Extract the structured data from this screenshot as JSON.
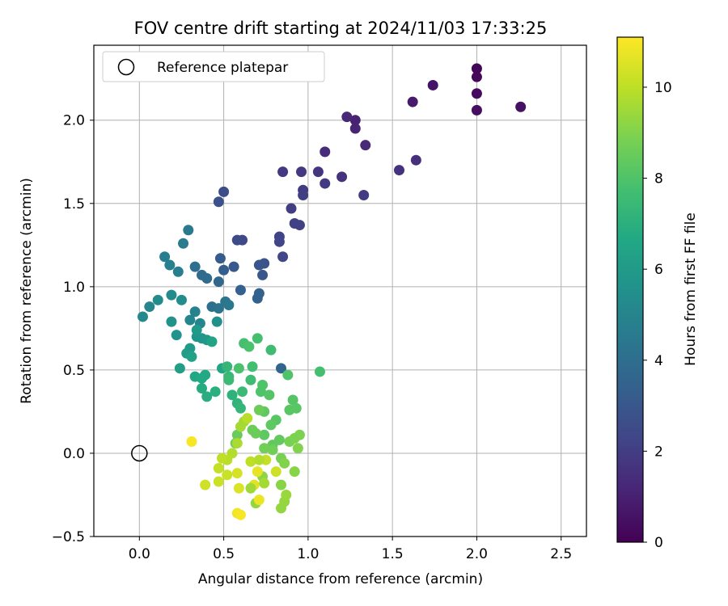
{
  "chart_data": {
    "type": "scatter",
    "title": "FOV centre drift starting at 2024/11/03 17:33:25",
    "xlabel": "Angular distance from reference (arcmin)",
    "ylabel": "Rotation from reference (arcmin)",
    "xlim": [
      -0.27,
      2.65
    ],
    "ylim": [
      -0.5,
      2.45
    ],
    "x_ticks": [
      0.0,
      0.5,
      1.0,
      1.5,
      2.0,
      2.5
    ],
    "x_tick_labels": [
      "0.0",
      "0.5",
      "1.0",
      "1.5",
      "2.0",
      "2.5"
    ],
    "y_ticks": [
      -0.5,
      0.0,
      0.5,
      1.0,
      1.5,
      2.0
    ],
    "y_tick_labels": [
      "−0.5",
      "0.0",
      "0.5",
      "1.0",
      "1.5",
      "2.0"
    ],
    "grid": true,
    "legend": {
      "position": "top-left",
      "entries": [
        {
          "label": "Reference platepar",
          "marker": "hollow-circle"
        }
      ]
    },
    "reference_point": [
      0.0,
      0.0
    ],
    "colorbar": {
      "label": "Hours from first FF file",
      "range": [
        0,
        11.1
      ],
      "ticks": [
        0,
        2,
        4,
        6,
        8,
        10
      ],
      "tick_labels": [
        "0",
        "2",
        "4",
        "6",
        "8",
        "10"
      ],
      "colormap": "viridis"
    },
    "points": [
      [
        2.0,
        2.31,
        0.1
      ],
      [
        2.0,
        2.26,
        0.2
      ],
      [
        2.0,
        2.16,
        0.3
      ],
      [
        2.0,
        2.06,
        0.4
      ],
      [
        2.26,
        2.08,
        0.5
      ],
      [
        1.74,
        2.21,
        0.6
      ],
      [
        1.62,
        2.11,
        0.8
      ],
      [
        1.28,
        2.0,
        1.0
      ],
      [
        1.28,
        1.95,
        1.1
      ],
      [
        1.23,
        2.02,
        1.2
      ],
      [
        1.34,
        1.85,
        1.3
      ],
      [
        1.1,
        1.81,
        1.4
      ],
      [
        1.64,
        1.76,
        1.5
      ],
      [
        1.54,
        1.7,
        1.6
      ],
      [
        1.2,
        1.66,
        1.6
      ],
      [
        1.06,
        1.69,
        1.7
      ],
      [
        0.96,
        1.69,
        1.8
      ],
      [
        0.85,
        1.69,
        1.8
      ],
      [
        1.1,
        1.62,
        1.9
      ],
      [
        1.33,
        1.55,
        1.9
      ],
      [
        0.97,
        1.58,
        1.9
      ],
      [
        0.97,
        1.55,
        2.0
      ],
      [
        0.9,
        1.47,
        2.0
      ],
      [
        0.92,
        1.38,
        2.1
      ],
      [
        0.95,
        1.37,
        2.1
      ],
      [
        0.83,
        1.3,
        2.2
      ],
      [
        0.83,
        1.27,
        2.3
      ],
      [
        0.85,
        1.18,
        2.3
      ],
      [
        0.61,
        1.28,
        2.4
      ],
      [
        0.58,
        1.28,
        2.5
      ],
      [
        0.5,
        1.57,
        2.6
      ],
      [
        0.47,
        1.51,
        2.7
      ],
      [
        0.74,
        1.14,
        2.8
      ],
      [
        0.71,
        1.13,
        2.9
      ],
      [
        0.73,
        1.07,
        3.0
      ],
      [
        0.56,
        1.12,
        3.1
      ],
      [
        0.48,
        1.17,
        3.2
      ],
      [
        0.5,
        1.1,
        3.3
      ],
      [
        0.6,
        0.98,
        3.4
      ],
      [
        0.71,
        0.96,
        3.5
      ],
      [
        0.7,
        0.93,
        3.5
      ],
      [
        0.84,
        0.51,
        3.6
      ],
      [
        0.47,
        1.03,
        3.7
      ],
      [
        0.37,
        1.07,
        3.8
      ],
      [
        0.4,
        1.05,
        3.9
      ],
      [
        0.33,
        1.12,
        4.0
      ],
      [
        0.43,
        0.88,
        4.1
      ],
      [
        0.47,
        0.87,
        4.2
      ],
      [
        0.51,
        0.91,
        4.3
      ],
      [
        0.53,
        0.89,
        4.4
      ],
      [
        0.29,
        1.34,
        4.5
      ],
      [
        0.26,
        1.26,
        4.6
      ],
      [
        0.15,
        1.18,
        4.7
      ],
      [
        0.23,
        1.09,
        4.7
      ],
      [
        0.18,
        1.13,
        4.8
      ],
      [
        0.33,
        0.85,
        4.9
      ],
      [
        0.36,
        0.78,
        5.0
      ],
      [
        0.3,
        0.8,
        5.0
      ],
      [
        0.06,
        0.88,
        5.1
      ],
      [
        0.02,
        0.82,
        5.2
      ],
      [
        0.11,
        0.92,
        5.3
      ],
      [
        0.19,
        0.95,
        5.3
      ],
      [
        0.25,
        0.92,
        5.4
      ],
      [
        0.46,
        0.79,
        5.5
      ],
      [
        0.19,
        0.79,
        5.6
      ],
      [
        0.22,
        0.71,
        5.6
      ],
      [
        0.34,
        0.7,
        5.7
      ],
      [
        0.37,
        0.69,
        5.8
      ],
      [
        0.4,
        0.68,
        5.9
      ],
      [
        0.34,
        0.74,
        6.0
      ],
      [
        0.3,
        0.63,
        6.0
      ],
      [
        0.28,
        0.6,
        6.1
      ],
      [
        0.24,
        0.51,
        6.2
      ],
      [
        0.31,
        0.58,
        6.3
      ],
      [
        0.43,
        0.67,
        6.4
      ],
      [
        0.49,
        0.51,
        6.5
      ],
      [
        0.33,
        0.46,
        6.6
      ],
      [
        0.37,
        0.45,
        6.7
      ],
      [
        0.39,
        0.47,
        6.7
      ],
      [
        0.37,
        0.39,
        6.8
      ],
      [
        0.4,
        0.34,
        6.9
      ],
      [
        0.45,
        0.37,
        7.0
      ],
      [
        0.55,
        0.35,
        7.1
      ],
      [
        0.58,
        0.3,
        7.2
      ],
      [
        0.6,
        0.27,
        7.3
      ],
      [
        0.52,
        0.52,
        7.3
      ],
      [
        0.53,
        0.46,
        7.4
      ],
      [
        0.53,
        0.44,
        7.5
      ],
      [
        0.61,
        0.37,
        7.5
      ],
      [
        0.66,
        0.44,
        7.6
      ],
      [
        0.67,
        0.52,
        7.7
      ],
      [
        0.62,
        0.66,
        7.8
      ],
      [
        0.7,
        0.69,
        7.8
      ],
      [
        0.65,
        0.64,
        7.9
      ],
      [
        0.59,
        0.51,
        7.9
      ],
      [
        0.72,
        0.37,
        8.0
      ],
      [
        0.73,
        0.41,
        8.0
      ],
      [
        0.77,
        0.35,
        8.1
      ],
      [
        0.81,
        0.2,
        8.2
      ],
      [
        0.78,
        0.17,
        8.3
      ],
      [
        0.74,
        0.11,
        8.3
      ],
      [
        0.79,
        0.05,
        8.4
      ],
      [
        0.83,
        0.08,
        8.4
      ],
      [
        0.58,
        0.11,
        8.5
      ],
      [
        0.57,
        0.06,
        8.5
      ],
      [
        0.67,
        0.14,
        8.6
      ],
      [
        0.69,
        0.12,
        8.6
      ],
      [
        0.74,
        0.03,
        8.7
      ],
      [
        0.79,
        0.02,
        8.7
      ],
      [
        0.84,
        -0.03,
        8.8
      ],
      [
        0.89,
        0.07,
        8.8
      ],
      [
        0.92,
        0.09,
        8.9
      ],
      [
        0.95,
        0.11,
        8.9
      ],
      [
        0.94,
        0.03,
        9.0
      ],
      [
        0.86,
        -0.06,
        9.0
      ],
      [
        0.92,
        -0.11,
        9.1
      ],
      [
        0.84,
        -0.19,
        9.1
      ],
      [
        0.73,
        -0.14,
        9.2
      ],
      [
        0.69,
        -0.3,
        9.3
      ],
      [
        0.86,
        -0.29,
        9.3
      ],
      [
        0.84,
        -0.33,
        9.3
      ],
      [
        0.87,
        -0.25,
        9.4
      ],
      [
        0.78,
        0.62,
        7.6
      ],
      [
        1.07,
        0.49,
        7.8
      ],
      [
        0.88,
        0.47,
        8.0
      ],
      [
        0.91,
        0.32,
        8.1
      ],
      [
        0.93,
        0.27,
        8.2
      ],
      [
        0.89,
        0.26,
        8.2
      ],
      [
        0.74,
        0.25,
        8.3
      ],
      [
        0.71,
        0.26,
        8.6
      ],
      [
        0.62,
        0.19,
        9.5
      ],
      [
        0.6,
        0.16,
        9.6
      ],
      [
        0.58,
        0.06,
        9.7
      ],
      [
        0.55,
        0.0,
        9.8
      ],
      [
        0.52,
        -0.04,
        9.9
      ],
      [
        0.49,
        -0.03,
        10.0
      ],
      [
        0.47,
        -0.09,
        10.1
      ],
      [
        0.52,
        -0.13,
        10.2
      ],
      [
        0.47,
        -0.17,
        10.2
      ],
      [
        0.39,
        -0.19,
        10.3
      ],
      [
        0.58,
        -0.12,
        10.4
      ],
      [
        0.59,
        -0.21,
        10.5
      ],
      [
        0.68,
        -0.19,
        10.6
      ],
      [
        0.7,
        -0.11,
        10.7
      ],
      [
        0.71,
        -0.28,
        10.8
      ],
      [
        0.58,
        -0.36,
        10.9
      ],
      [
        0.31,
        0.07,
        11.0
      ],
      [
        0.6,
        -0.37,
        11.0
      ],
      [
        0.66,
        -0.05,
        10.0
      ],
      [
        0.75,
        -0.04,
        10.1
      ],
      [
        0.81,
        -0.11,
        10.3
      ],
      [
        0.66,
        -0.21,
        9.5
      ],
      [
        0.74,
        -0.18,
        9.6
      ],
      [
        0.71,
        -0.04,
        9.8
      ],
      [
        0.64,
        0.21,
        9.9
      ]
    ]
  }
}
